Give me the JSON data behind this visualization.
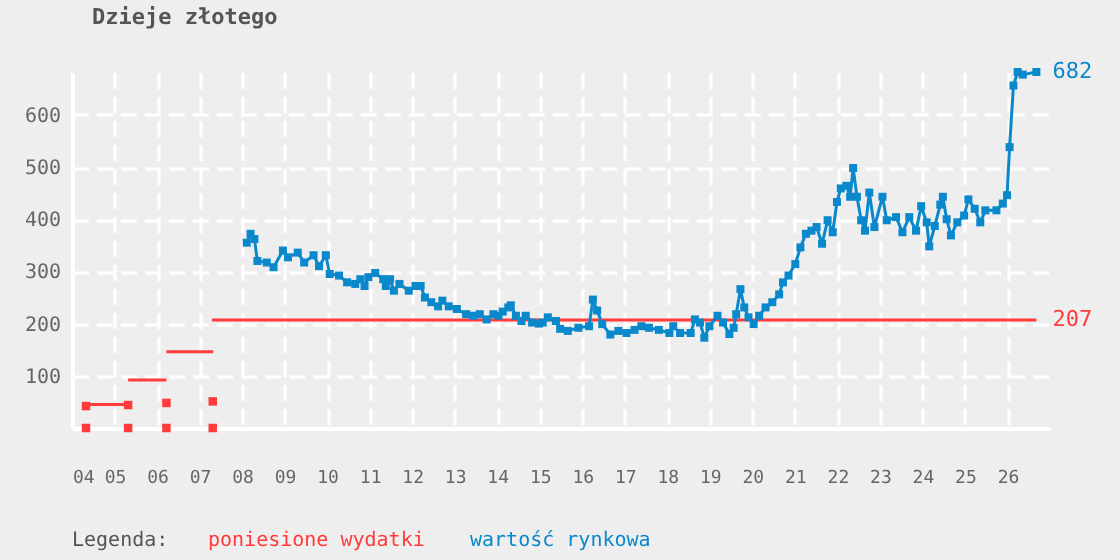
{
  "chart_data": {
    "type": "line",
    "title": "Dzieje złotego",
    "legend_title": "Legenda:",
    "legend": "bottom",
    "grid": true,
    "xlim": [
      2004,
      2027
    ],
    "ylim": [
      0,
      682
    ],
    "xticks": [
      {
        "value": 2004,
        "label": "04"
      },
      {
        "value": 2005,
        "label": "05"
      },
      {
        "value": 2006,
        "label": "06"
      },
      {
        "value": 2007,
        "label": "07"
      },
      {
        "value": 2008,
        "label": "08"
      },
      {
        "value": 2009,
        "label": "09"
      },
      {
        "value": 2010,
        "label": "10"
      },
      {
        "value": 2011,
        "label": "11"
      },
      {
        "value": 2012,
        "label": "12"
      },
      {
        "value": 2013,
        "label": "13"
      },
      {
        "value": 2014,
        "label": "14"
      },
      {
        "value": 2015,
        "label": "15"
      },
      {
        "value": 2016,
        "label": "16"
      },
      {
        "value": 2017,
        "label": "17"
      },
      {
        "value": 2018,
        "label": "18"
      },
      {
        "value": 2019,
        "label": "19"
      },
      {
        "value": 2020,
        "label": "20"
      },
      {
        "value": 2021,
        "label": "21"
      },
      {
        "value": 2022,
        "label": "22"
      },
      {
        "value": 2023,
        "label": "23"
      },
      {
        "value": 2024,
        "label": "24"
      },
      {
        "value": 2025,
        "label": "25"
      },
      {
        "value": 2026,
        "label": "26"
      }
    ],
    "yticks": [
      100,
      200,
      300,
      400,
      500,
      600
    ],
    "series": [
      {
        "name": "poniesione wydatki",
        "color": "#ff3b3b",
        "marker": "none",
        "x": [
          2004.33,
          2005.32,
          null,
          2005.32,
          2006.22,
          null,
          2006.22,
          2007.32,
          null,
          2007.29,
          2026.68
        ],
        "values": [
          45,
          45,
          null,
          92,
          92,
          null,
          146,
          146,
          null,
          207,
          207
        ],
        "value_labels": [
          null,
          null,
          null,
          null,
          null,
          null,
          null,
          null,
          null,
          null,
          "207"
        ]
      },
      {
        "type": "scatter",
        "color": "#ff3b3b",
        "marker": "square",
        "x": [
          2004.33,
          2005.32,
          2006.22,
          2007.31,
          2004.33,
          2005.32,
          2006.22,
          2007.31
        ],
        "values": [
          42,
          44,
          48,
          51,
          0,
          0,
          0,
          0
        ]
      },
      {
        "name": "wartość rynkowa",
        "color": "#0a88cc",
        "marker": "square",
        "x": [
          2008.11,
          2008.2,
          2008.29,
          2008.36,
          2008.58,
          2008.74,
          2008.96,
          2009.08,
          2009.31,
          2009.46,
          2009.68,
          2009.81,
          2009.97,
          2010.06,
          2010.28,
          2010.47,
          2010.66,
          2010.78,
          2010.88,
          2010.97,
          2011.13,
          2011.32,
          2011.38,
          2011.48,
          2011.57,
          2011.7,
          2011.92,
          2012.08,
          2012.2,
          2012.3,
          2012.45,
          2012.61,
          2012.71,
          2012.86,
          2013.05,
          2013.27,
          2013.43,
          2013.59,
          2013.75,
          2013.91,
          2014.03,
          2014.13,
          2014.26,
          2014.32,
          2014.44,
          2014.57,
          2014.67,
          2014.82,
          2014.98,
          2015.07,
          2015.19,
          2015.38,
          2015.48,
          2015.66,
          2015.91,
          2016.16,
          2016.25,
          2016.35,
          2016.47,
          2016.66,
          2016.85,
          2017.04,
          2017.23,
          2017.39,
          2017.57,
          2017.8,
          2018.05,
          2018.14,
          2018.3,
          2018.55,
          2018.65,
          2018.77,
          2018.87,
          2018.99,
          2019.18,
          2019.31,
          2019.46,
          2019.56,
          2019.62,
          2019.72,
          2019.81,
          2019.91,
          2020.03,
          2020.16,
          2020.31,
          2020.47,
          2020.63,
          2020.72,
          2020.85,
          2021.01,
          2021.13,
          2021.26,
          2021.39,
          2021.51,
          2021.64,
          2021.77,
          2021.89,
          2021.99,
          2022.08,
          2022.21,
          2022.3,
          2022.37,
          2022.46,
          2022.56,
          2022.65,
          2022.75,
          2022.87,
          2023.06,
          2023.16,
          2023.38,
          2023.53,
          2023.69,
          2023.85,
          2023.97,
          2024.1,
          2024.16,
          2024.29,
          2024.42,
          2024.48,
          2024.57,
          2024.67,
          2024.82,
          2024.98,
          2025.08,
          2025.23,
          2025.36,
          2025.48,
          2025.74,
          2025.89,
          2025.99,
          2026.05,
          2026.14,
          2026.24,
          2026.36,
          2026.68
        ],
        "values": [
          355,
          372,
          362,
          320,
          317,
          308,
          340,
          327,
          336,
          317,
          331,
          310,
          331,
          295,
          292,
          279,
          276,
          285,
          272,
          289,
          297,
          285,
          272,
          285,
          263,
          276,
          263,
          272,
          272,
          250,
          241,
          233,
          244,
          233,
          228,
          218,
          215,
          218,
          208,
          218,
          215,
          223,
          231,
          235,
          215,
          205,
          215,
          202,
          200,
          202,
          212,
          205,
          190,
          186,
          192,
          195,
          246,
          225,
          199,
          179,
          186,
          182,
          188,
          195,
          192,
          188,
          182,
          195,
          182,
          182,
          208,
          202,
          173,
          195,
          215,
          202,
          180,
          192,
          218,
          266,
          231,
          212,
          199,
          215,
          231,
          241,
          256,
          279,
          292,
          314,
          346,
          372,
          378,
          385,
          353,
          398,
          375,
          433,
          459,
          464,
          443,
          498,
          443,
          398,
          378,
          451,
          385,
          443,
          398,
          404,
          375,
          404,
          378,
          425,
          394,
          348,
          387,
          428,
          443,
          400,
          369,
          394,
          407,
          438,
          420,
          394,
          417,
          417,
          430,
          446,
          538,
          656,
          682,
          677,
          682
        ],
        "value_labels": [
          null,
          null,
          null,
          null,
          null,
          null,
          null,
          null,
          null,
          null,
          null,
          null,
          null,
          null,
          null,
          null,
          null,
          null,
          null,
          null,
          null,
          null,
          null,
          null,
          null,
          null,
          null,
          null,
          null,
          null,
          null,
          null,
          null,
          null,
          null,
          null,
          null,
          null,
          null,
          null,
          null,
          null,
          null,
          null,
          null,
          null,
          null,
          null,
          null,
          null,
          null,
          null,
          null,
          null,
          null,
          null,
          null,
          null,
          null,
          null,
          null,
          null,
          null,
          null,
          null,
          null,
          null,
          null,
          null,
          null,
          null,
          null,
          null,
          null,
          null,
          null,
          null,
          null,
          null,
          null,
          null,
          null,
          null,
          null,
          null,
          null,
          null,
          null,
          null,
          null,
          null,
          null,
          null,
          null,
          null,
          null,
          null,
          null,
          null,
          null,
          null,
          null,
          null,
          null,
          null,
          null,
          null,
          null,
          null,
          null,
          null,
          null,
          null,
          null,
          null,
          null,
          null,
          null,
          null,
          null,
          null,
          null,
          null,
          null,
          null,
          null,
          null,
          null,
          null,
          null,
          null,
          null,
          null,
          null,
          "682"
        ]
      }
    ]
  }
}
